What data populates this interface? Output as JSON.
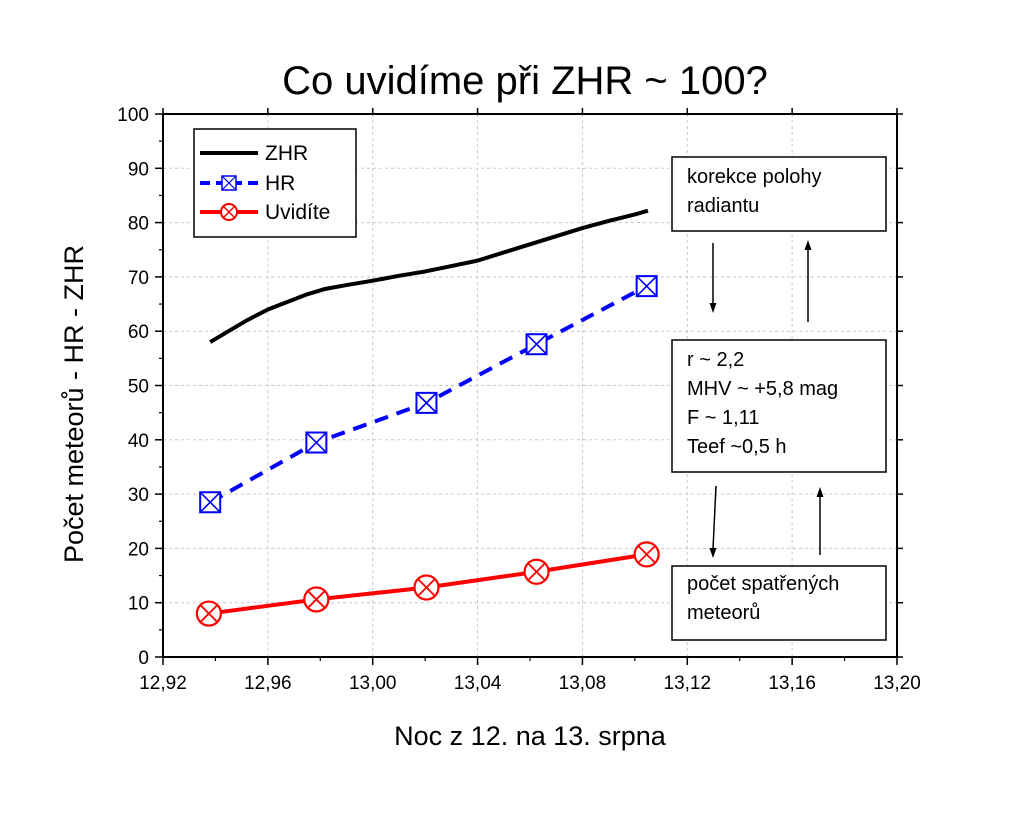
{
  "chart_data": {
    "type": "line",
    "title": "Co uvidíme při ZHR ~ 100?",
    "xlabel": "Noc z 12. na 13. srpna",
    "ylabel": "Počet meteorů - HR - ZHR",
    "xlim": [
      12.92,
      13.2
    ],
    "ylim": [
      0,
      100
    ],
    "x_ticks": [
      "12,92",
      "12,96",
      "13,00",
      "13,04",
      "13,08",
      "13,12",
      "13,16",
      "13,20"
    ],
    "y_ticks": [
      "0",
      "10",
      "20",
      "30",
      "40",
      "50",
      "60",
      "70",
      "80",
      "90",
      "100"
    ],
    "grid": true,
    "legend_position": "top-left",
    "series": [
      {
        "name": "ZHR",
        "color": "#000000",
        "style": "solid",
        "marker": "none",
        "x": [
          12.938,
          12.945,
          12.952,
          12.96,
          12.968,
          12.975,
          12.982,
          12.99,
          13.0,
          13.01,
          13.02,
          13.03,
          13.04,
          13.05,
          13.06,
          13.07,
          13.08,
          13.09,
          13.1,
          13.105
        ],
        "y": [
          58,
          60,
          62,
          64,
          65.5,
          66.8,
          67.8,
          68.5,
          69.3,
          70.2,
          71,
          72,
          73,
          74.5,
          76,
          77.5,
          79,
          80.3,
          81.5,
          82.2
        ]
      },
      {
        "name": "HR",
        "color": "#0000ff",
        "style": "dashed",
        "marker": "boxed-x",
        "x": [
          12.938,
          12.9785,
          13.0205,
          13.0625,
          13.1045
        ],
        "y": [
          28.5,
          39.5,
          46.8,
          57.6,
          68.3
        ]
      },
      {
        "name": "Uvidíte",
        "color": "#ff0000",
        "style": "solid",
        "marker": "circled-x",
        "x": [
          12.9375,
          12.9785,
          13.0205,
          13.0625,
          13.1045
        ],
        "y": [
          8,
          10.6,
          12.8,
          15.7,
          18.9
        ]
      }
    ],
    "annotations": [
      {
        "lines": [
          "korekce polohy",
          "radiantu"
        ]
      },
      {
        "lines": [
          "r ~ 2,2",
          "MHV ~ +5,8 mag",
          "F ~ 1,11",
          "Teef ~0,5 h"
        ]
      },
      {
        "lines": [
          "počet spatřených",
          "meteorů"
        ]
      }
    ]
  }
}
